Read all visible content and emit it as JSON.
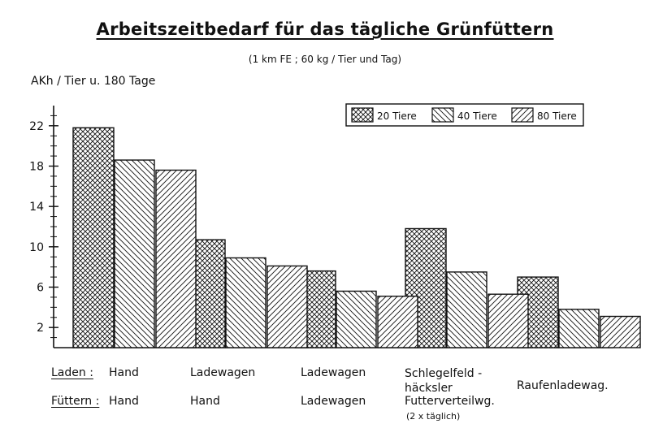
{
  "title": "Arbeitszeitbedarf für das tägliche Grünfüttern",
  "subtitle": "(1 km FE ;   60 kg / Tier und Tag)",
  "ylabel": "AKh / Tier u. 180 Tage",
  "rows": {
    "laden_header": "Laden :",
    "fuettern_header": "Füttern :",
    "laden": [
      "Hand",
      "Ladewagen",
      "Ladewagen",
      "Schlegelfeld -\nhäcksler",
      "Raufenladewag."
    ],
    "fuettern": [
      "Hand",
      "Hand",
      "Ladewagen",
      "Futterverteilwg.",
      ""
    ],
    "note": "(2 x täglich)"
  },
  "chart_data": {
    "type": "bar",
    "title": "Arbeitszeitbedarf für das tägliche Grünfüttern",
    "subtitle": "(1 km FE ;   60 kg / Tier und Tag)",
    "ylabel": "AKh / Tier u. 180 Tage",
    "xlabel": "",
    "ylim": [
      0,
      24
    ],
    "yticks": [
      2,
      6,
      10,
      14,
      18,
      22
    ],
    "legend_position": "top-right",
    "categories": [
      "Hand / Hand",
      "Ladewagen / Hand",
      "Ladewagen / Ladewagen",
      "Schlegelfeldhäcksler / Futterverteilwg.",
      "Raufenladewag."
    ],
    "series": [
      {
        "name": "20 Tiere",
        "values": [
          21.8,
          10.7,
          7.6,
          11.8,
          7.0
        ]
      },
      {
        "name": "40 Tiere",
        "values": [
          18.6,
          8.9,
          5.6,
          7.5,
          3.8
        ]
      },
      {
        "name": "80 Tiere",
        "values": [
          17.6,
          8.1,
          5.1,
          5.3,
          3.1
        ]
      }
    ]
  }
}
